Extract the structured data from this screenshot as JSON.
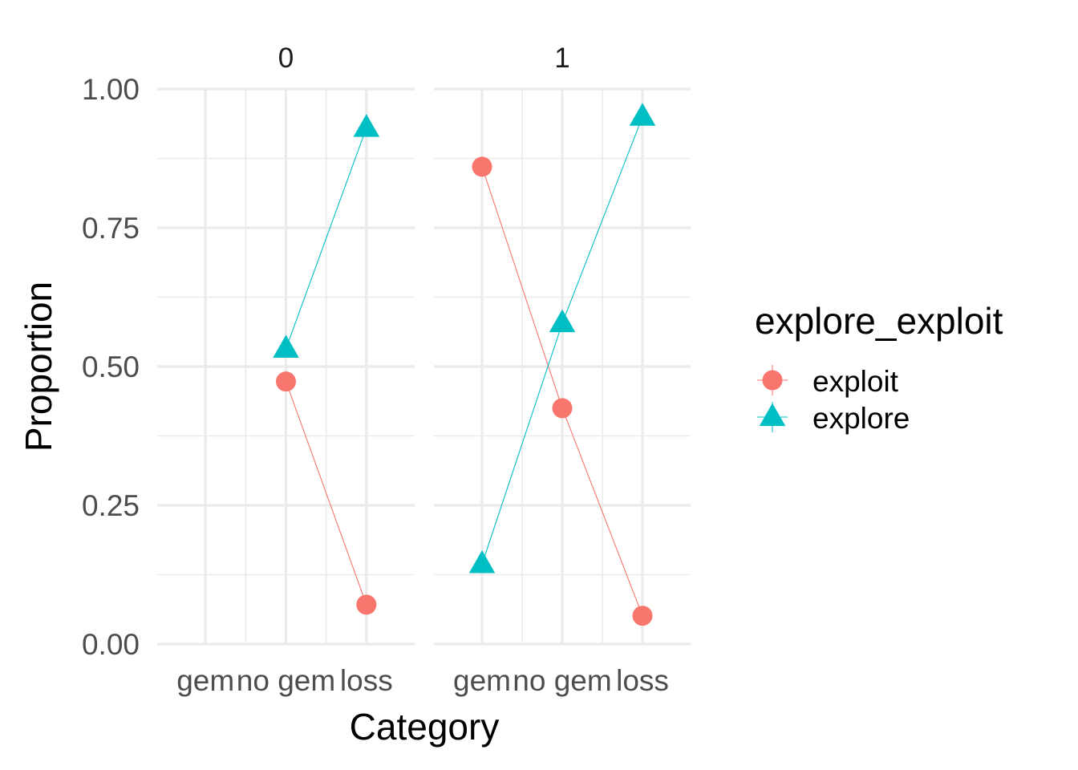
{
  "chart_data": {
    "type": "line",
    "facets": [
      {
        "label": "0",
        "categories": [
          "gem",
          "no gem",
          "loss"
        ],
        "series": [
          {
            "name": "exploit",
            "values": [
              null,
              0.473,
              0.071
            ]
          },
          {
            "name": "explore",
            "values": [
              null,
              0.532,
              0.93
            ]
          }
        ]
      },
      {
        "label": "1",
        "categories": [
          "gem",
          "no gem",
          "loss"
        ],
        "series": [
          {
            "name": "exploit",
            "values": [
              0.86,
              0.425,
              0.051
            ]
          },
          {
            "name": "explore",
            "values": [
              0.144,
              0.578,
              0.95
            ]
          }
        ]
      }
    ],
    "xlabel": "Category",
    "ylabel": "Proportion",
    "ylim": [
      0,
      1
    ],
    "yticks": [
      "0.00",
      "0.25",
      "0.50",
      "0.75",
      "1.00"
    ],
    "legend": {
      "title": "explore_exploit",
      "position": "right",
      "entries": [
        {
          "name": "exploit",
          "color": "#F8766D",
          "shape": "circle"
        },
        {
          "name": "explore",
          "color": "#00BFC4",
          "shape": "triangle"
        }
      ]
    },
    "grid": true
  }
}
